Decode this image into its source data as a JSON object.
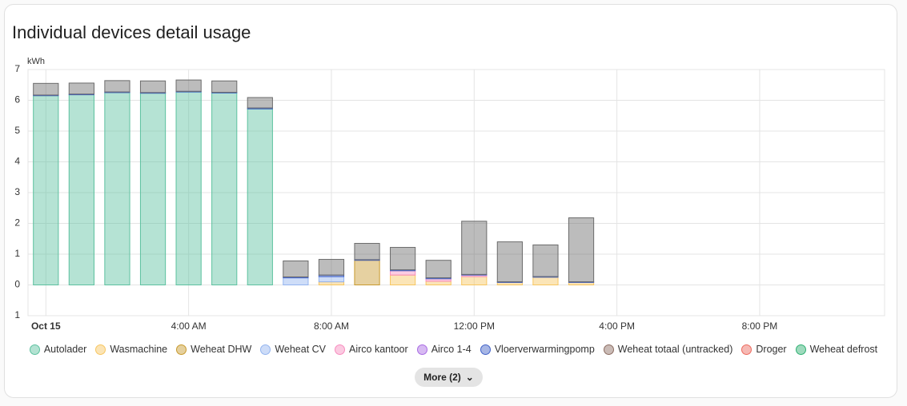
{
  "chart_data": {
    "type": "bar",
    "stacked": true,
    "title": "Individual devices detail usage",
    "y_label": "kWh",
    "categories": [
      "Oct 15",
      null,
      null,
      null,
      "4:00 AM",
      null,
      null,
      null,
      "8:00 AM",
      null,
      null,
      null,
      "12:00 PM",
      null,
      null,
      null,
      "4:00 PM",
      null,
      null,
      null,
      "8:00 PM",
      null,
      null,
      null
    ],
    "ylim": [
      -1,
      7
    ],
    "yticks": [
      {
        "value": -1,
        "label": "1"
      },
      0,
      1,
      2,
      3,
      4,
      5,
      6,
      7
    ],
    "grid": true,
    "series": [
      {
        "name": "Autolader",
        "color": "#5cc19f",
        "values": [
          6.15,
          6.18,
          6.25,
          6.23,
          6.27,
          6.24,
          5.72,
          null,
          null,
          null,
          null,
          null,
          null,
          null,
          null,
          null,
          null,
          null,
          null,
          null,
          null,
          null,
          null,
          null
        ]
      },
      {
        "name": "Wasmachine",
        "color": "#f7c660",
        "values": [
          null,
          null,
          null,
          null,
          null,
          null,
          null,
          null,
          0.1,
          null,
          0.32,
          0.12,
          0.27,
          0.08,
          0.25,
          0.08,
          null,
          null,
          null,
          null,
          null,
          null,
          null,
          null
        ]
      },
      {
        "name": "Weheat DHW",
        "color": "#c89a2e",
        "values": [
          null,
          null,
          null,
          null,
          null,
          null,
          null,
          null,
          null,
          0.8,
          null,
          null,
          null,
          null,
          null,
          null,
          null,
          null,
          null,
          null,
          null,
          null,
          null,
          null
        ]
      },
      {
        "name": "Weheat CV",
        "color": "#93b4ef",
        "values": [
          null,
          null,
          null,
          null,
          null,
          null,
          null,
          0.23,
          0.17,
          null,
          null,
          null,
          null,
          null,
          null,
          null,
          null,
          null,
          null,
          null,
          null,
          null,
          null,
          null
        ]
      },
      {
        "name": "Airco kantoor",
        "color": "#f78dbf",
        "values": [
          null,
          null,
          null,
          null,
          null,
          null,
          null,
          null,
          null,
          null,
          0.14,
          0.08,
          0.05,
          null,
          null,
          null,
          null,
          null,
          null,
          null,
          null,
          null,
          null,
          null
        ]
      },
      {
        "name": "Airco 1-4",
        "color": "#a96be3",
        "values": [
          null,
          null,
          null,
          null,
          null,
          null,
          null,
          null,
          null,
          null,
          null,
          null,
          null,
          null,
          null,
          null,
          null,
          null,
          null,
          null,
          null,
          null,
          null,
          null
        ]
      },
      {
        "name": "Vloerverwarmingpomp",
        "color": "#4262c8",
        "values": [
          0.02,
          0.02,
          0.02,
          0.02,
          0.02,
          0.02,
          0.03,
          0.03,
          0.05,
          0.02,
          0.03,
          0.03,
          0.02,
          0.02,
          0.02,
          0.02,
          null,
          null,
          null,
          null,
          null,
          null,
          null,
          null
        ]
      },
      {
        "name": "Weheat totaal (untracked)",
        "color": "#8d6e63",
        "values": [
          null,
          null,
          null,
          null,
          null,
          null,
          null,
          null,
          null,
          null,
          null,
          null,
          null,
          null,
          null,
          null,
          null,
          null,
          null,
          null,
          null,
          null,
          null,
          null
        ]
      },
      {
        "name": "Droger",
        "color": "#ec6a5e",
        "values": [
          null,
          null,
          null,
          null,
          null,
          null,
          null,
          null,
          null,
          null,
          null,
          null,
          null,
          null,
          null,
          null,
          null,
          null,
          null,
          null,
          null,
          null,
          null,
          null
        ]
      },
      {
        "name": "Weheat defrost",
        "color": "#2fb072",
        "values": [
          null,
          null,
          null,
          null,
          null,
          null,
          null,
          null,
          null,
          null,
          null,
          null,
          null,
          null,
          null,
          null,
          null,
          null,
          null,
          null,
          null,
          null,
          null,
          null
        ]
      },
      {
        "color": "#6b6b6b",
        "values": [
          0.38,
          0.36,
          0.37,
          0.38,
          0.37,
          0.37,
          0.34,
          0.52,
          0.51,
          0.53,
          0.73,
          0.57,
          1.73,
          1.3,
          1.03,
          2.08,
          null,
          null,
          null,
          null,
          null,
          null,
          null,
          null
        ]
      }
    ]
  },
  "more_button": "More (2)"
}
